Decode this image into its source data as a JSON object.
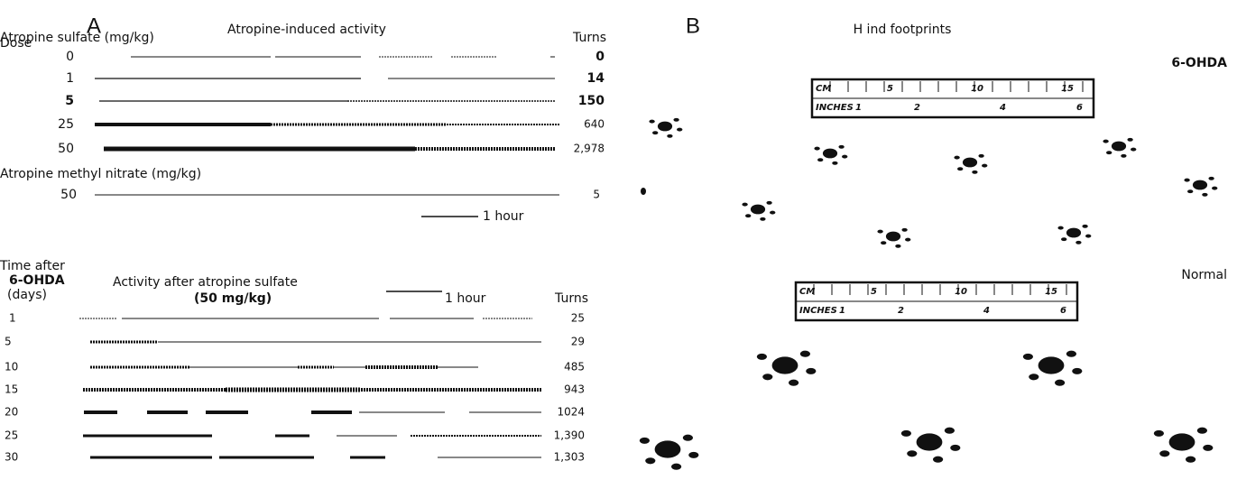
{
  "panel_a": {
    "letter": "A",
    "title": "Atropine-induced activity",
    "dose_label": "Dose",
    "group_label": "Atropine sulfate (mg/kg)",
    "turns_label": "Turns",
    "rows": [
      {
        "dose": "0",
        "turns": "0"
      },
      {
        "dose": "1",
        "turns": "14"
      },
      {
        "dose": "5",
        "turns": "150"
      },
      {
        "dose": "25",
        "turns": "640"
      },
      {
        "dose": "50",
        "turns": "2,978"
      }
    ],
    "methyl_label": "Atropine methyl nitrate (mg/kg)",
    "methyl_row": {
      "dose": "50",
      "turns": "5"
    },
    "scale": "1 hour"
  },
  "panel_a_lower": {
    "time_label": "Time after",
    "drug": "6-OHDA",
    "days_label": "(days)",
    "title": "Activity after atropine sulfate",
    "dose": "(50 mg/kg)",
    "scale": "1 hour",
    "turns_label": "Turns",
    "rows": [
      {
        "day": "1",
        "turns": "25"
      },
      {
        "day": "5",
        "turns": "29"
      },
      {
        "day": "10",
        "turns": "485"
      },
      {
        "day": "15",
        "turns": "943"
      },
      {
        "day": "20",
        "turns": "1024"
      },
      {
        "day": "25",
        "turns": "1,390"
      },
      {
        "day": "30",
        "turns": "1,303"
      }
    ]
  },
  "panel_b": {
    "letter": "B",
    "title": "H ind footprints",
    "groups": [
      {
        "label": "6-OHDA"
      },
      {
        "label": "Normal"
      }
    ],
    "ruler": {
      "cm": "CM",
      "cm_marks": [
        "5",
        "10",
        "15"
      ],
      "inches": "INCHES",
      "inch_marks": [
        "1",
        "2",
        "4",
        "6"
      ]
    }
  }
}
